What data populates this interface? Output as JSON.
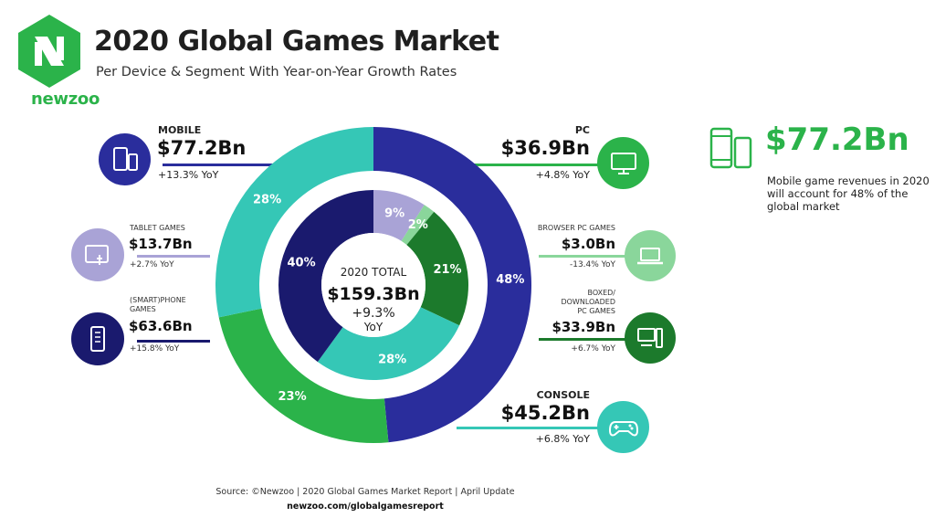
{
  "brand": {
    "name": "newzoo",
    "primary_color": "#2bb34a"
  },
  "header": {
    "title": "2020 Global Games Market",
    "subtitle": "Per Device & Segment With Year-on-Year Growth Rates"
  },
  "chart_data": {
    "type": "pie",
    "variant": "nested-donut",
    "center": {
      "line1": "2020 TOTAL",
      "total": "$159.3Bn",
      "growth": "+9.3%",
      "growth_unit": "YoY"
    },
    "outer_ring": [
      {
        "name": "MOBILE",
        "share_pct": 48,
        "value": "$77.2Bn",
        "yoy": "+13.3% YoY",
        "color": "#2a2d9c"
      },
      {
        "name": "PC",
        "share_pct": 23,
        "value": "$36.9Bn",
        "yoy": "+4.8% YoY",
        "color": "#2bb34a"
      },
      {
        "name": "CONSOLE",
        "share_pct": 28,
        "value": "$45.2Bn",
        "yoy": "+6.8% YoY",
        "color": "#35c7b6"
      }
    ],
    "inner_ring": [
      {
        "name": "TABLET GAMES",
        "share_pct": 9,
        "value": "$13.7Bn",
        "yoy": "+2.7% YoY",
        "color": "#a9a3d6"
      },
      {
        "name": "BROWSER PC GAMES",
        "share_pct": 2,
        "value": "$3.0Bn",
        "yoy": "-13.4% YoY",
        "color": "#8ad69b"
      },
      {
        "name": "BOXED/ DOWNLOADED PC GAMES",
        "share_pct": 21,
        "value": "$33.9Bn",
        "yoy": "+6.7% YoY",
        "color": "#1c7a2c"
      },
      {
        "name": "CONSOLE",
        "share_pct": 28,
        "value": "$45.2Bn",
        "yoy": "+6.8% YoY",
        "color": "#35c7b6"
      },
      {
        "name": "(SMART)PHONE GAMES",
        "share_pct": 40,
        "value": "$63.6Bn",
        "yoy": "+15.8% YoY",
        "color": "#1a1a6e"
      }
    ],
    "outer_labels": [
      "48%",
      "23%",
      "28%"
    ],
    "inner_labels": [
      "9%",
      "2%",
      "21%",
      "28%",
      "40%"
    ]
  },
  "segments": {
    "mobile": {
      "name": "MOBILE",
      "value": "$77.2Bn",
      "yoy": "+13.3% YoY"
    },
    "tablet": {
      "name": "TABLET GAMES",
      "value": "$13.7Bn",
      "yoy": "+2.7% YoY"
    },
    "phone": {
      "name_line1": "(SMART)PHONE",
      "name_line2": "GAMES",
      "value": "$63.6Bn",
      "yoy": "+15.8% YoY"
    },
    "pc": {
      "name": "PC",
      "value": "$36.9Bn",
      "yoy": "+4.8% YoY"
    },
    "browser": {
      "name": "BROWSER PC GAMES",
      "value": "$3.0Bn",
      "yoy": "-13.4% YoY"
    },
    "boxed": {
      "name_line1": "BOXED/",
      "name_line2": "DOWNLOADED",
      "name_line3": "PC GAMES",
      "value": "$33.9Bn",
      "yoy": "+6.7% YoY"
    },
    "console": {
      "name": "CONSOLE",
      "value": "$45.2Bn",
      "yoy": "+6.8% YoY"
    }
  },
  "callout": {
    "value": "$77.2Bn",
    "text": "Mobile game revenues in 2020 will account for 48% of the global market",
    "icon": "mobile-devices-icon"
  },
  "footer": {
    "source": "Source: ©Newzoo | 2020 Global Games Market Report | April Update",
    "url": "newzoo.com/globalgamesreport"
  },
  "icons": {
    "mobile": "mobile-devices-icon",
    "tablet": "tablet-touch-icon",
    "phone": "smartphone-icon",
    "pc": "monitor-icon",
    "browser": "laptop-icon",
    "boxed": "desktop-pc-icon",
    "console": "gamepad-icon"
  }
}
